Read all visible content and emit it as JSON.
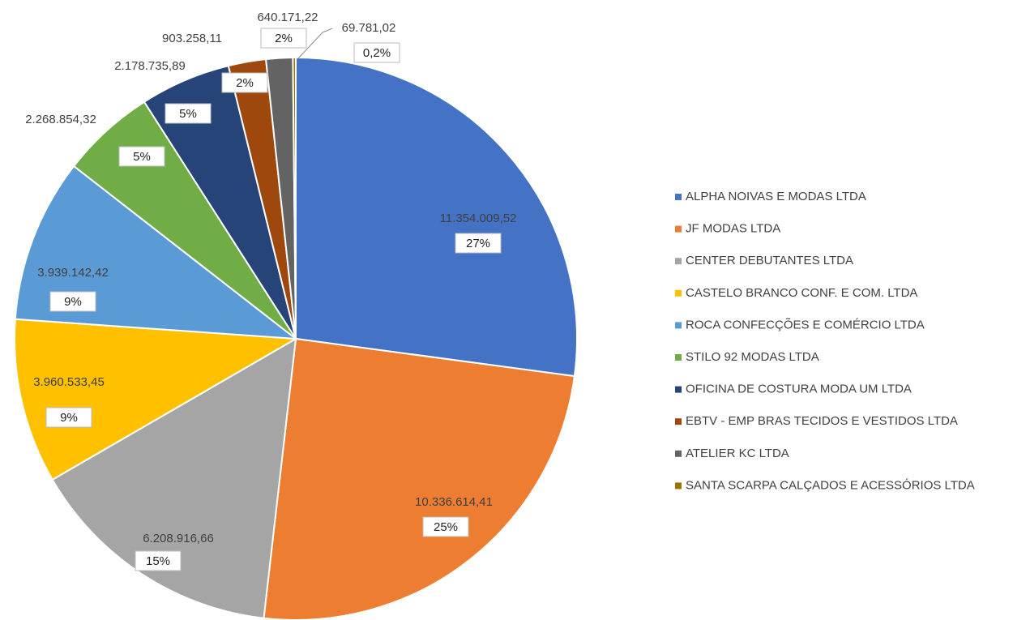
{
  "chart_data": {
    "type": "pie",
    "categories": [
      "ALPHA NOIVAS E MODAS LTDA",
      "JF MODAS LTDA",
      "CENTER DEBUTANTES LTDA",
      "CASTELO BRANCO CONF. E COM. LTDA",
      "ROCA CONFECÇÕES E COMÉRCIO LTDA",
      "STILO 92 MODAS LTDA",
      "OFICINA DE COSTURA MODA UM LTDA",
      "EBTV - EMP BRAS TECIDOS E VESTIDOS LTDA",
      "ATELIER KC LTDA",
      "SANTA SCARPA CALÇADOS E ACESSÓRIOS LTDA"
    ],
    "values": [
      11354009.52,
      10336614.41,
      6208916.66,
      3960533.45,
      3939142.42,
      2268854.32,
      2178735.89,
      903258.11,
      640171.22,
      69781.02
    ],
    "value_labels": [
      "11.354.009,52",
      "10.336.614,41",
      "6.208.916,66",
      "3.960.533,45",
      "3.939.142,42",
      "2.268.854,32",
      "2.178.735,89",
      "903.258,11",
      "640.171,22",
      "69.781,02"
    ],
    "percent_labels": [
      "27%",
      "25%",
      "15%",
      "9%",
      "9%",
      "5%",
      "5%",
      "2%",
      "2%",
      "0,2%"
    ],
    "colors": [
      "#4472c4",
      "#ed7d31",
      "#a5a5a5",
      "#ffc000",
      "#5b9bd5",
      "#70ad47",
      "#264478",
      "#9e480e",
      "#636363",
      "#997300"
    ]
  }
}
